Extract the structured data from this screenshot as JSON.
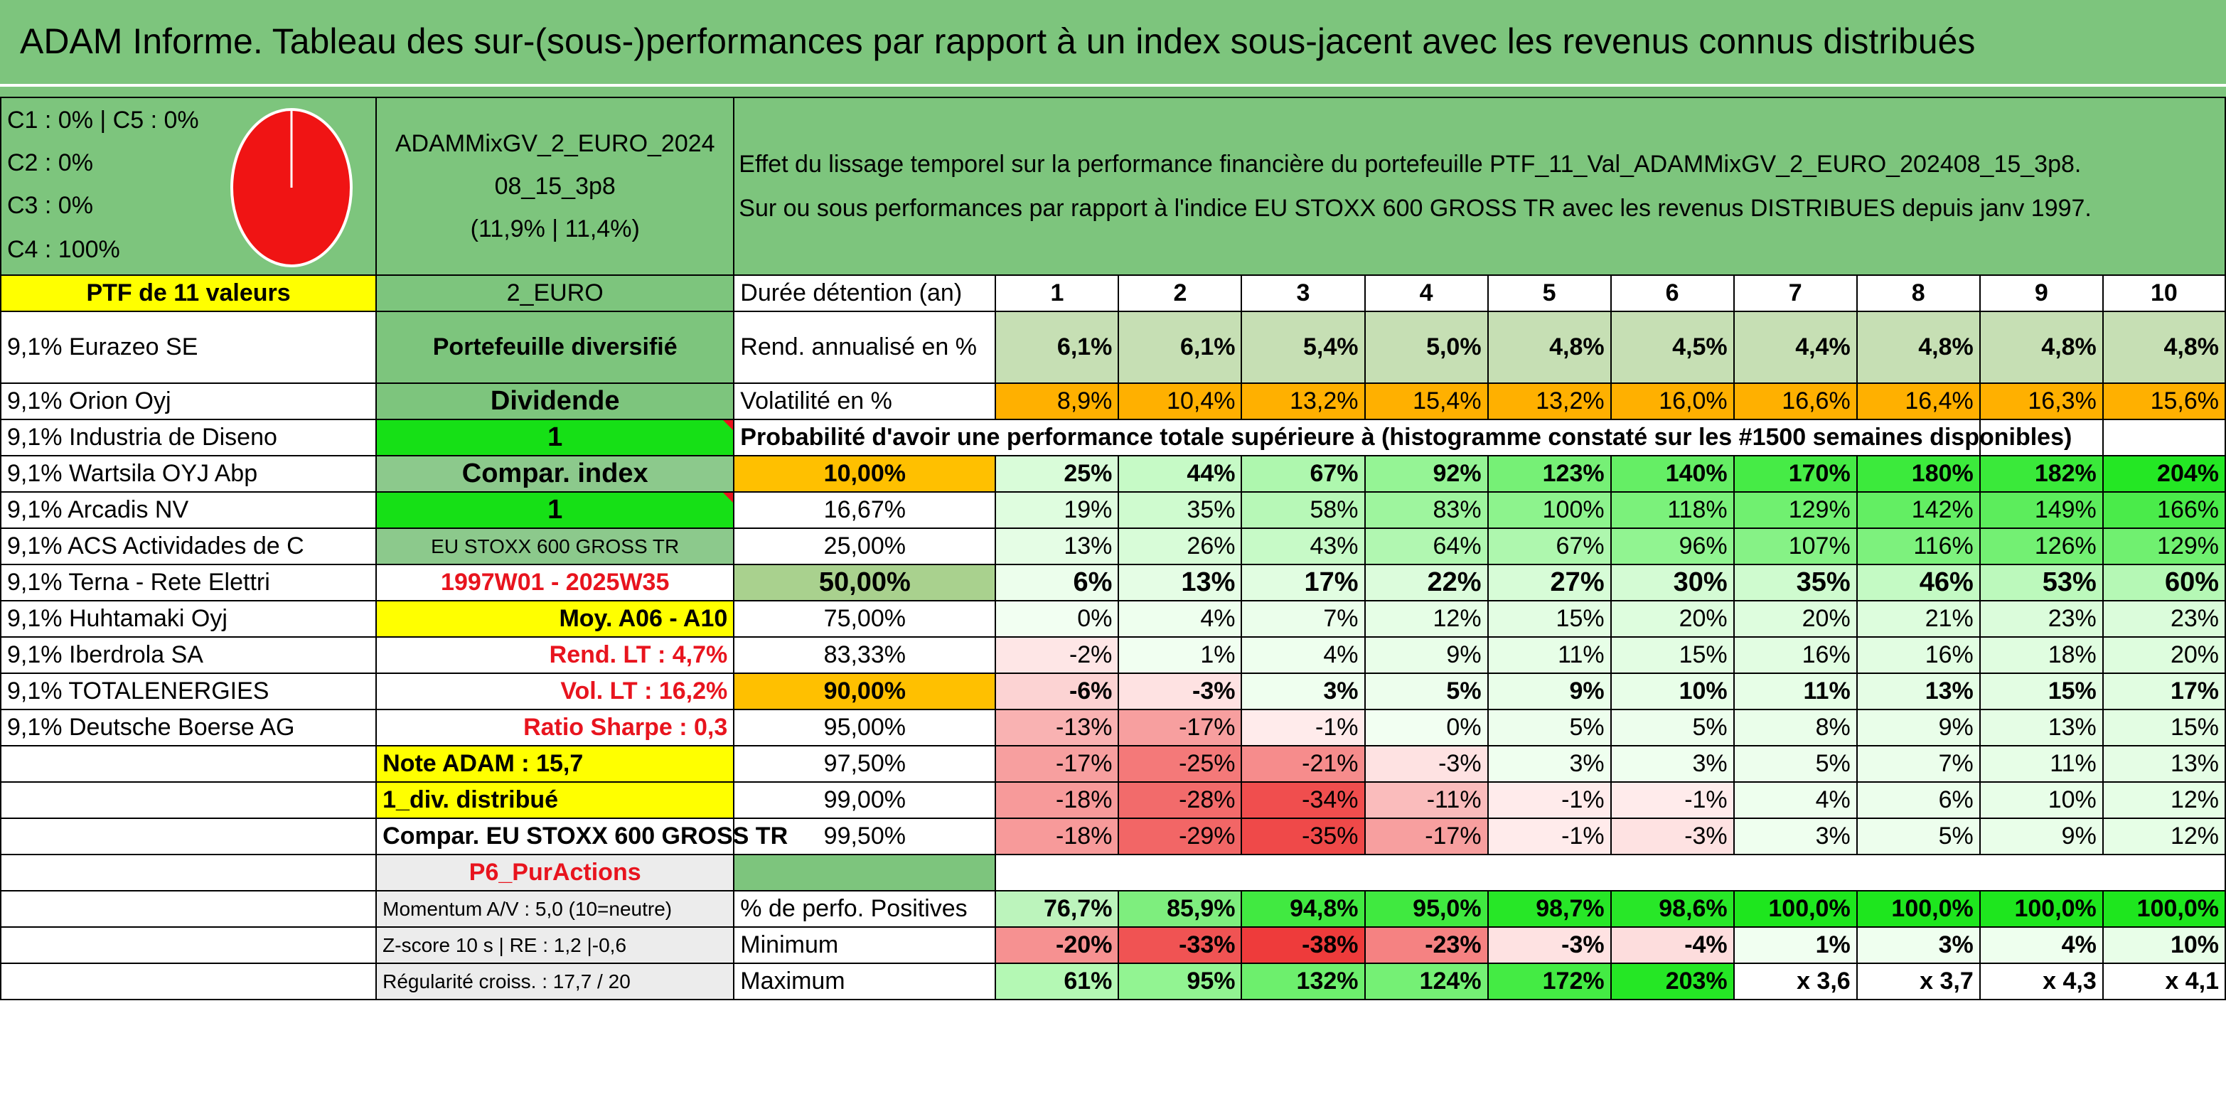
{
  "title": "ADAM Informe. Tableau des sur-(sous-)performances par rapport à un index sous-jacent avec les revenus connus distribués",
  "classes": {
    "c1_c5": "C1 : 0% | C5 : 0%",
    "c2": "C2 : 0%",
    "c3": "C3 : 0%",
    "c4": "C4 : 100%",
    "pie_color": "#f01414"
  },
  "fund": {
    "name_line1": "ADAMMixGV_2_EURO_2024",
    "name_line2": "08_15_3p8",
    "name_line3": "(11,9% | 11,4%)"
  },
  "description": {
    "line1": "Effet du lissage temporel sur la performance financière du portefeuille PTF_11_Val_ADAMMixGV_2_EURO_202408_15_3p8.",
    "line2": "Sur ou sous performances par rapport à l'indice EU STOXX 600 GROSS TR avec les revenus DISTRIBUES depuis janv 1997."
  },
  "left_header": "PTF de 11 valeurs",
  "holdings": [
    "9,1% Eurazeo SE",
    "9,1% Orion Oyj",
    "9,1% Industria de Diseno",
    "9,1% Wartsila OYJ Abp",
    "9,1% Arcadis NV",
    "9,1% ACS Actividades de C",
    "9,1% Terna - Rete Elettri",
    "9,1% Huhtamaki Oyj",
    "9,1% Iberdrola SA",
    "9,1% TOTALENERGIES",
    "9,1% Deutsche Boerse AG"
  ],
  "middle": {
    "code": "2_EURO",
    "type": "Portefeuille diversifié",
    "dividende_label": "Dividende",
    "dividende_value": "1",
    "compar_label": "Compar. index",
    "compar_value": "1",
    "index_name": "EU STOXX 600 GROSS TR",
    "period": "1997W01 - 2025W35",
    "moy": "Moy. A06 - A10",
    "rend_lt": "Rend. LT : 4,7%",
    "vol_lt": "Vol. LT : 16,2%",
    "sharpe": "Ratio Sharpe : 0,3",
    "note": "Note ADAM : 15,7",
    "div": "1_div. distribué",
    "compar_full": "Compar. EU STOXX 600 GROSS TR",
    "p6": "P6_PurActions",
    "momentum": "Momentum A/V : 5,0 (10=neutre)",
    "zscore": "Z-score 10 s | RE : 1,2 |-0,6",
    "regularite": "Régularité croiss. : 17,7 / 20"
  },
  "table": {
    "duration_label": "Durée détention (an)",
    "years": [
      "1",
      "2",
      "3",
      "4",
      "5",
      "6",
      "7",
      "8",
      "9",
      "10"
    ],
    "rend_label": "Rend. annualisé en %",
    "rend": [
      "6,1%",
      "6,1%",
      "5,4%",
      "5,0%",
      "4,8%",
      "4,5%",
      "4,4%",
      "4,8%",
      "4,8%",
      "4,8%"
    ],
    "vol_label": "Volatilité en %",
    "vol": [
      "8,9%",
      "10,4%",
      "13,2%",
      "15,4%",
      "13,2%",
      "16,0%",
      "16,6%",
      "16,4%",
      "16,3%",
      "15,6%"
    ],
    "proba_label": "Probabilité d'avoir une performance totale supérieure à (histogramme constaté sur les #1500 semaines disponibles)",
    "quantiles": [
      {
        "p": "10,00%",
        "v": [
          "25%",
          "44%",
          "67%",
          "92%",
          "123%",
          "140%",
          "170%",
          "180%",
          "182%",
          "204%"
        ]
      },
      {
        "p": "16,67%",
        "v": [
          "19%",
          "35%",
          "58%",
          "83%",
          "100%",
          "118%",
          "129%",
          "142%",
          "149%",
          "166%"
        ]
      },
      {
        "p": "25,00%",
        "v": [
          "13%",
          "26%",
          "43%",
          "64%",
          "67%",
          "96%",
          "107%",
          "116%",
          "126%",
          "129%"
        ]
      },
      {
        "p": "50,00%",
        "v": [
          "6%",
          "13%",
          "17%",
          "22%",
          "27%",
          "30%",
          "35%",
          "46%",
          "53%",
          "60%"
        ]
      },
      {
        "p": "75,00%",
        "v": [
          "0%",
          "4%",
          "7%",
          "12%",
          "15%",
          "20%",
          "20%",
          "21%",
          "23%",
          "23%"
        ]
      },
      {
        "p": "83,33%",
        "v": [
          "-2%",
          "1%",
          "4%",
          "9%",
          "11%",
          "15%",
          "16%",
          "16%",
          "18%",
          "20%"
        ]
      },
      {
        "p": "90,00%",
        "v": [
          "-6%",
          "-3%",
          "3%",
          "5%",
          "9%",
          "10%",
          "11%",
          "13%",
          "15%",
          "17%"
        ]
      },
      {
        "p": "95,00%",
        "v": [
          "-13%",
          "-17%",
          "-1%",
          "0%",
          "5%",
          "5%",
          "8%",
          "9%",
          "13%",
          "15%"
        ]
      },
      {
        "p": "97,50%",
        "v": [
          "-17%",
          "-25%",
          "-21%",
          "-3%",
          "3%",
          "3%",
          "5%",
          "7%",
          "11%",
          "13%"
        ]
      },
      {
        "p": "99,00%",
        "v": [
          "-18%",
          "-28%",
          "-34%",
          "-11%",
          "-1%",
          "-1%",
          "4%",
          "6%",
          "10%",
          "12%"
        ]
      },
      {
        "p": "99,50%",
        "v": [
          "-18%",
          "-29%",
          "-35%",
          "-17%",
          "-1%",
          "-3%",
          "3%",
          "5%",
          "9%",
          "12%"
        ]
      }
    ],
    "pos_label": "% de perfo. Positives",
    "pos": [
      "76,7%",
      "85,9%",
      "94,8%",
      "95,0%",
      "98,7%",
      "98,6%",
      "100,0%",
      "100,0%",
      "100,0%",
      "100,0%"
    ],
    "min_label": "Minimum",
    "min": [
      "-20%",
      "-33%",
      "-38%",
      "-23%",
      "-3%",
      "-4%",
      "1%",
      "3%",
      "4%",
      "10%"
    ],
    "max_label": "Maximum",
    "max": [
      "61%",
      "95%",
      "132%",
      "124%",
      "172%",
      "203%",
      "x 3,6",
      "x 3,7",
      "x 4,3",
      "x 4,1"
    ]
  },
  "colors": {
    "green_header": "#7dc57d",
    "mid_green": "#8cc98c",
    "bright_green": "#16e016",
    "yellow": "#ffff00",
    "orange": "#ffc000",
    "rend_bg": "#c6dfb4",
    "vol_bg": "#ffb000",
    "red_text": "#e8141e",
    "grey_bg": "#ececec"
  }
}
